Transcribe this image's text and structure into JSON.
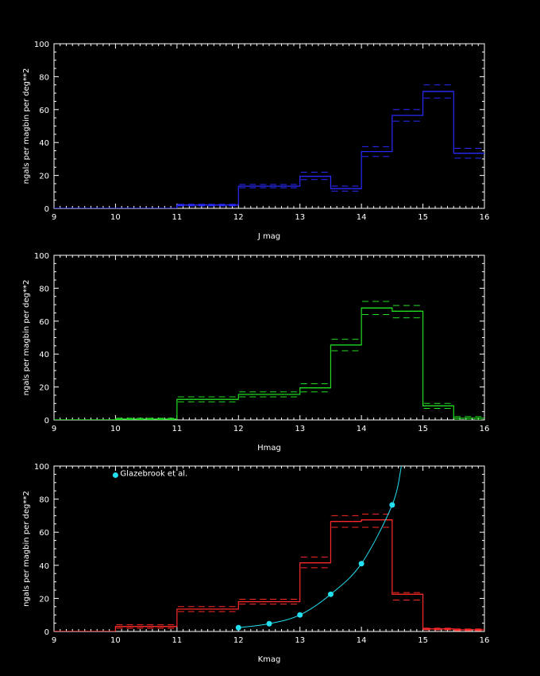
{
  "chart_data": [
    {
      "type": "histogram",
      "title": "",
      "xlabel": "J mag",
      "ylabel": "ngals per magbin per deg**2",
      "xlim": [
        9,
        16
      ],
      "ylim": [
        0,
        100
      ],
      "xticks": [
        9,
        10,
        11,
        12,
        13,
        14,
        15,
        16
      ],
      "yticks": [
        0,
        20,
        40,
        60,
        80,
        100
      ],
      "color": "#2a2aff",
      "grid": false,
      "bin_edges": [
        9,
        9.5,
        10,
        10.5,
        11,
        11.5,
        12,
        12.5,
        13,
        13.5,
        14,
        14.5,
        15,
        15.5,
        16
      ],
      "values": [
        0,
        0,
        0,
        0,
        2,
        2,
        13.5,
        13.5,
        19.5,
        12,
        34.5,
        56.5,
        71,
        33.5
      ],
      "upper": [
        0,
        0,
        0,
        0,
        2.5,
        2.5,
        14.5,
        14.5,
        22,
        13.5,
        37.5,
        60,
        75,
        36.5
      ],
      "lower": [
        0,
        0,
        0,
        0,
        1.5,
        1.5,
        12.5,
        12.5,
        17.5,
        10.5,
        31.5,
        53,
        67,
        30.5
      ]
    },
    {
      "type": "histogram",
      "title": "",
      "xlabel": "Hmag",
      "ylabel": "ngals per magbin per deg**2",
      "xlim": [
        9,
        16
      ],
      "ylim": [
        0,
        100
      ],
      "xticks": [
        9,
        10,
        11,
        12,
        13,
        14,
        15,
        16
      ],
      "yticks": [
        0,
        20,
        40,
        60,
        80,
        100
      ],
      "color": "#22dd22",
      "grid": false,
      "bin_edges": [
        9,
        9.5,
        10,
        10.5,
        11,
        11.5,
        12,
        12.5,
        13,
        13.5,
        14,
        14.5,
        15,
        15.5,
        16
      ],
      "values": [
        0,
        0,
        0.5,
        0.5,
        12.5,
        12.5,
        15.5,
        15.5,
        19.5,
        45.5,
        68,
        66,
        8.5,
        1
      ],
      "upper": [
        0,
        0,
        1,
        1,
        14,
        14,
        17,
        17,
        22,
        49,
        72,
        69.5,
        10,
        2
      ],
      "lower": [
        0,
        0,
        0,
        0,
        11,
        11,
        14,
        14,
        17,
        42,
        64,
        62,
        7,
        0
      ]
    },
    {
      "type": "histogram",
      "title": "",
      "xlabel": "Kmag",
      "ylabel": "ngals per magbin per deg**2",
      "xlim": [
        9,
        16
      ],
      "ylim": [
        0,
        100
      ],
      "xticks": [
        9,
        10,
        11,
        12,
        13,
        14,
        15,
        16
      ],
      "yticks": [
        0,
        20,
        40,
        60,
        80,
        100
      ],
      "color": "#ff2a2a",
      "grid": false,
      "bin_edges": [
        9,
        9.5,
        10,
        10.5,
        11,
        11.5,
        12,
        12.5,
        13,
        13.5,
        14,
        14.5,
        15,
        15.5,
        16
      ],
      "values": [
        0,
        0,
        3,
        3,
        13.5,
        13.5,
        18,
        18,
        41.5,
        66.5,
        67.5,
        22.5,
        1.5,
        1
      ],
      "upper": [
        0,
        0,
        4,
        4,
        15,
        15,
        19.5,
        19.5,
        45,
        70,
        71,
        23.5,
        2,
        1.5
      ],
      "lower": [
        0,
        0,
        2,
        2,
        12,
        12,
        16.5,
        16.5,
        38.5,
        63,
        63,
        19,
        1,
        0.5
      ],
      "overlay": {
        "name": "Glazebrook et al.",
        "color": "#22e0f0",
        "points": [
          {
            "x": 12,
            "y": 2.3
          },
          {
            "x": 12.5,
            "y": 4.7
          },
          {
            "x": 13,
            "y": 10
          },
          {
            "x": 13.5,
            "y": 22.5
          },
          {
            "x": 14,
            "y": 41
          },
          {
            "x": 14.5,
            "y": 76.5
          }
        ],
        "curve": [
          {
            "x": 12,
            "y": 2.3
          },
          {
            "x": 12.5,
            "y": 4.7
          },
          {
            "x": 13,
            "y": 10
          },
          {
            "x": 13.5,
            "y": 22.5
          },
          {
            "x": 14,
            "y": 41
          },
          {
            "x": 14.5,
            "y": 76.5
          },
          {
            "x": 14.65,
            "y": 100
          }
        ],
        "legend_marker": {
          "x": 10,
          "y": 94.5
        }
      }
    }
  ]
}
